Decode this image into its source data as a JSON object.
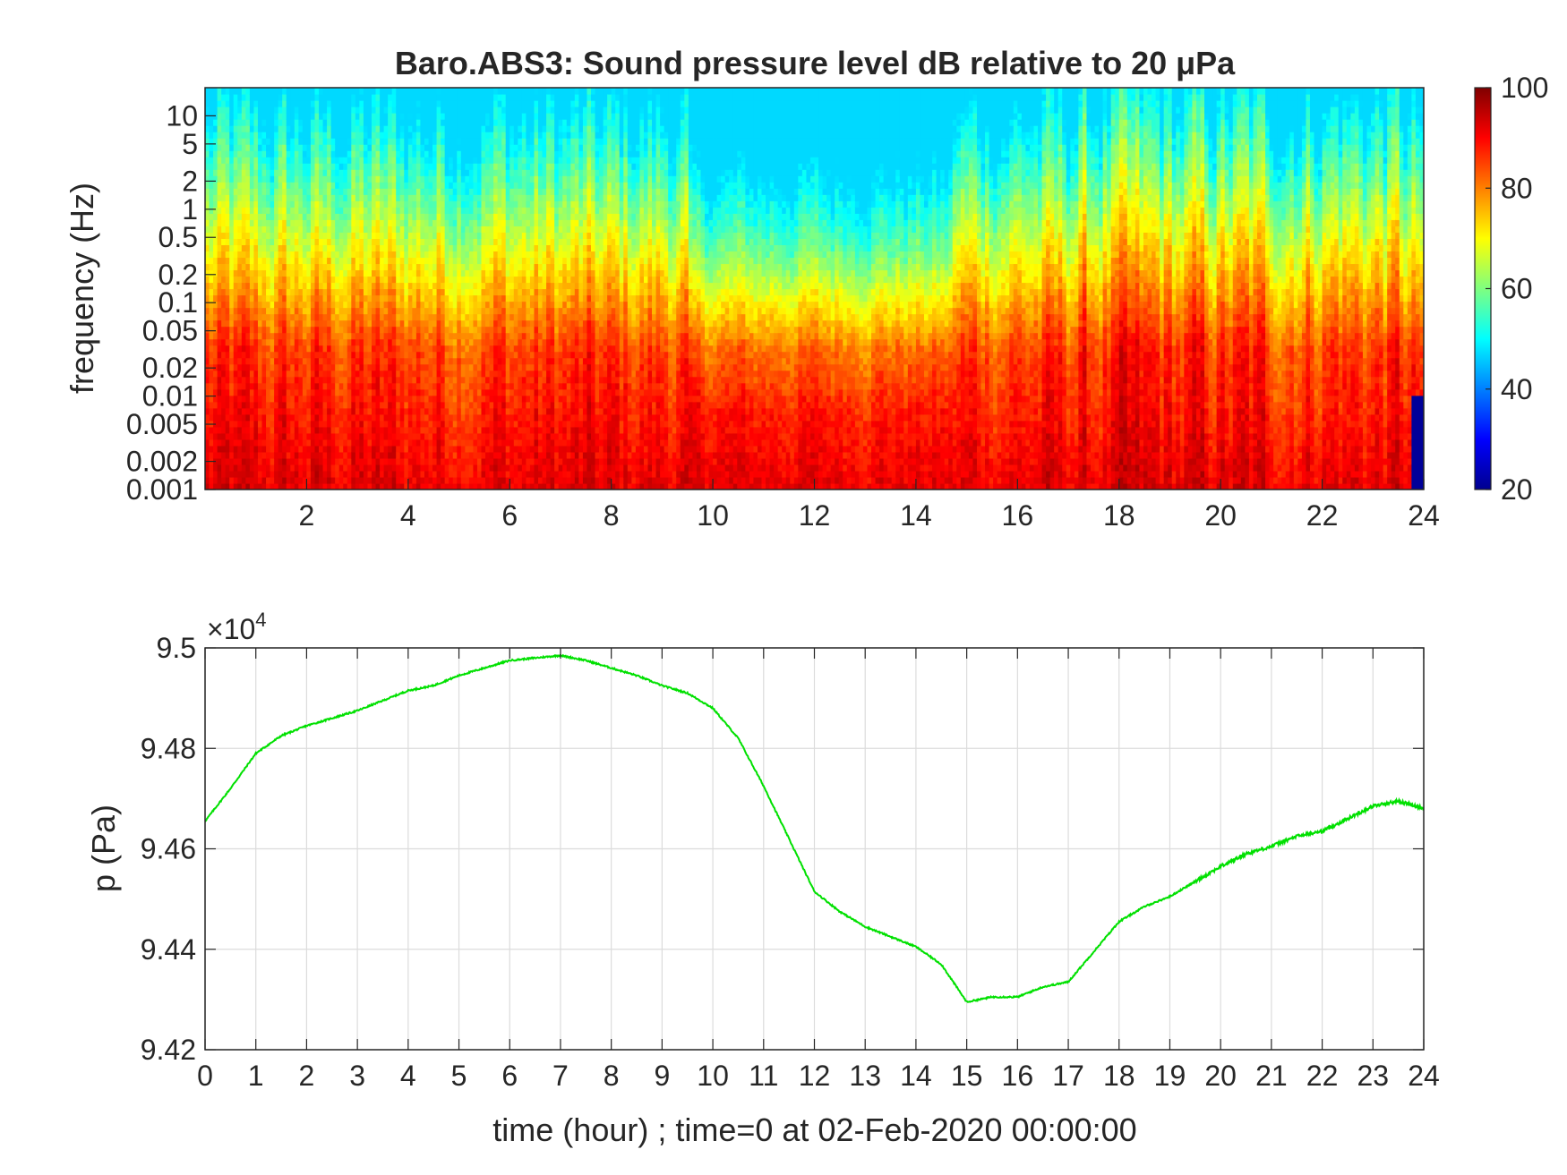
{
  "chart_data": [
    {
      "type": "heatmap",
      "title": "Baro.ABS3: Sound pressure level dB relative to 20 μPa",
      "ylabel": "frequency (Hz)",
      "xlabel": "",
      "xlim": [
        0,
        24
      ],
      "x_ticks": [
        "2",
        "4",
        "6",
        "8",
        "10",
        "12",
        "14",
        "16",
        "18",
        "20",
        "22",
        "24"
      ],
      "y_scale": "log",
      "ylim": [
        0.001,
        20
      ],
      "y_ticks": [
        "0.001",
        "0.002",
        "0.005",
        "0.01",
        "0.02",
        "0.05",
        "0.1",
        "0.2",
        "0.5",
        "1",
        "2",
        "5",
        "10"
      ],
      "colorbar": {
        "range": [
          20,
          100
        ],
        "ticks": [
          "20",
          "40",
          "60",
          "80",
          "100"
        ],
        "colormap": "jet"
      },
      "quiet_period_hours": [
        9.5,
        14.7
      ],
      "low_value_patch": {
        "x_hours": [
          23.8,
          24
        ],
        "freq_hz": [
          0.001,
          0.01
        ],
        "approx_db": 22
      },
      "typical_db": {
        "low_freq": 92,
        "mid_freq": 78,
        "high_freq": 50
      }
    },
    {
      "type": "line",
      "xlabel": "time (hour) ; time=0 at 02-Feb-2020 00:00:00",
      "ylabel": "p (Pa)",
      "y_multiplier": "×10^4",
      "xlim": [
        0,
        24
      ],
      "ylim": [
        9.42,
        9.5
      ],
      "x_ticks": [
        "0",
        "1",
        "2",
        "3",
        "4",
        "5",
        "6",
        "7",
        "8",
        "9",
        "10",
        "11",
        "12",
        "13",
        "14",
        "15",
        "16",
        "17",
        "18",
        "19",
        "20",
        "21",
        "22",
        "23",
        "24"
      ],
      "y_ticks": [
        "9.42",
        "9.44",
        "9.46",
        "9.48",
        "9.5"
      ],
      "grid": true,
      "color": "#00e000",
      "series": [
        {
          "x": [
            0,
            0.5,
            1,
            1.5,
            2,
            2.5,
            3,
            3.5,
            4,
            4.5,
            5,
            5.5,
            6,
            6.5,
            7,
            7.5,
            8,
            8.5,
            9,
            9.5,
            10,
            10.5,
            11,
            11.5,
            12,
            12.5,
            13,
            13.5,
            14,
            14.5,
            15,
            15.5,
            16,
            16.5,
            17,
            17.5,
            18,
            18.5,
            19,
            19.5,
            20,
            20.5,
            21,
            21.5,
            22,
            22.5,
            23,
            23.5,
            24
          ],
          "y": [
            9.4655,
            9.472,
            9.479,
            9.4825,
            9.4845,
            9.486,
            9.4875,
            9.4895,
            9.4915,
            9.4925,
            9.4945,
            9.496,
            9.4975,
            9.498,
            9.4985,
            9.4975,
            9.496,
            9.4945,
            9.4925,
            9.491,
            9.488,
            9.482,
            9.4725,
            9.462,
            9.4515,
            9.4475,
            9.4445,
            9.4425,
            9.4405,
            9.437,
            9.4295,
            9.4305,
            9.4305,
            9.4325,
            9.4335,
            9.4395,
            9.4455,
            9.4485,
            9.4505,
            9.4535,
            9.4565,
            9.459,
            9.4605,
            9.4625,
            9.4635,
            9.466,
            9.4685,
            9.4695,
            9.468
          ]
        }
      ]
    }
  ]
}
